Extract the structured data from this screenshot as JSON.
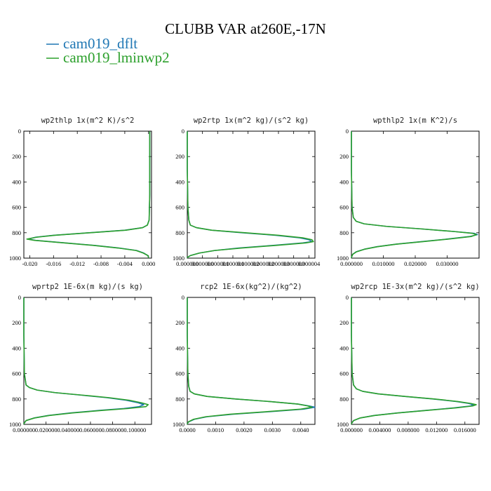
{
  "figure": {
    "title": "CLUBB VAR at260E,-17N",
    "legend": [
      {
        "label": "cam019_dflt",
        "color": "#1f77b4"
      },
      {
        "label": "cam019_lminwp2",
        "color": "#2ca02c"
      }
    ]
  },
  "chart_data": [
    {
      "type": "line",
      "title": "wp2thlp  1x(m^2 K)/s^2",
      "xlim": [
        -0.021,
        0.0005
      ],
      "ylim": [
        1000,
        0
      ],
      "x_ticks": [
        -0.02,
        -0.016,
        -0.012,
        -0.008,
        -0.004,
        0.0
      ],
      "x_tick_labels": [
        "-0.020",
        "-0.016",
        "-0.012",
        "-0.008",
        "-0.004",
        "0.000"
      ],
      "y_ticks": [
        0,
        200,
        400,
        600,
        800,
        1000
      ],
      "y_tick_labels": [
        "0",
        "200",
        "400",
        "600",
        "800",
        "1000"
      ],
      "series": [
        {
          "name": "cam019_dflt",
          "color": "#1f77b4",
          "y": [
            5,
            100,
            300,
            500,
            700,
            740,
            760,
            780,
            800,
            820,
            835,
            850,
            860,
            880,
            900,
            920,
            940,
            960,
            980,
            995
          ],
          "x": [
            0.0002,
            0.0002,
            0.0002,
            0.0002,
            0.0001,
            -0.0002,
            -0.001,
            -0.004,
            -0.01,
            -0.016,
            -0.019,
            -0.0203,
            -0.019,
            -0.014,
            -0.009,
            -0.005,
            -0.002,
            -0.0008,
            -0.0001,
            0.0
          ]
        },
        {
          "name": "cam019_lminwp2",
          "color": "#2ca02c",
          "y": [
            5,
            100,
            300,
            500,
            700,
            740,
            760,
            780,
            800,
            820,
            835,
            850,
            860,
            880,
            900,
            920,
            940,
            960,
            980,
            995
          ],
          "x": [
            0.0002,
            0.0002,
            0.0002,
            0.0002,
            0.0001,
            -0.0002,
            -0.001,
            -0.0038,
            -0.0098,
            -0.0158,
            -0.0188,
            -0.0205,
            -0.0192,
            -0.0142,
            -0.0092,
            -0.0052,
            -0.0021,
            -0.0009,
            -0.0001,
            0.0
          ]
        }
      ]
    },
    {
      "type": "line",
      "title": "wp2rtp  1x(m^2 kg)/(s^2 kg)",
      "xlim": [
        0,
        4.2e-06
      ],
      "ylim": [
        1000,
        0
      ],
      "x_ticks": [
        0,
        5e-07,
        1e-06,
        1.5e-06,
        2e-06,
        2.5e-06,
        3e-06,
        3.5e-06,
        4e-06
      ],
      "x_tick_labels": [
        "0.000000",
        "0.000000",
        "0.000001",
        "0.000001",
        "0.000002",
        "0.000002",
        "0.000003",
        "0.000003",
        "0.000004"
      ],
      "y_ticks": [
        0,
        200,
        400,
        600,
        800,
        1000
      ],
      "y_tick_labels": [
        "0",
        "200",
        "400",
        "600",
        "800",
        "1000"
      ],
      "series": [
        {
          "name": "cam019_dflt",
          "color": "#1f77b4",
          "y": [
            5,
            300,
            600,
            700,
            740,
            760,
            780,
            800,
            820,
            840,
            855,
            870,
            880,
            900,
            920,
            940,
            960,
            980,
            995
          ],
          "x": [
            0.0,
            0.0,
            2e-08,
            5e-08,
            1e-07,
            3e-07,
            8e-07,
            1.8e-06,
            2.9e-06,
            3.7e-06,
            4e-06,
            4.1e-06,
            3.8e-06,
            2.8e-06,
            1.7e-06,
            9e-07,
            4e-07,
            1e-07,
            0.0
          ]
        },
        {
          "name": "cam019_lminwp2",
          "color": "#2ca02c",
          "y": [
            5,
            300,
            600,
            700,
            740,
            760,
            780,
            800,
            820,
            840,
            855,
            870,
            880,
            900,
            920,
            940,
            960,
            980,
            995
          ],
          "x": [
            0.0,
            0.0,
            2e-08,
            5e-08,
            1e-07,
            3e-07,
            8e-07,
            1.9e-06,
            3e-06,
            3.8e-06,
            4.1e-06,
            4.15e-06,
            3.9e-06,
            2.9e-06,
            1.8e-06,
            9e-07,
            4e-07,
            1e-07,
            0.0
          ]
        }
      ]
    },
    {
      "type": "line",
      "title": "wpthlp2  1x(m K^2)/s",
      "xlim": [
        0,
        0.04
      ],
      "ylim": [
        1000,
        0
      ],
      "x_ticks": [
        0,
        0.01,
        0.02,
        0.03
      ],
      "x_tick_labels": [
        "0.000000",
        "0.010000",
        "0.020000",
        "0.030000"
      ],
      "y_ticks": [
        0,
        200,
        400,
        600,
        800,
        1000
      ],
      "y_tick_labels": [
        "0",
        "200",
        "400",
        "600",
        "800",
        "1000"
      ],
      "series": [
        {
          "name": "cam019_dflt",
          "color": "#1f77b4",
          "y": [
            5,
            300,
            600,
            680,
            710,
            730,
            750,
            770,
            790,
            805,
            815,
            830,
            850,
            870,
            890,
            910,
            930,
            950,
            970,
            995
          ],
          "x": [
            0.0,
            0.0,
            0.0002,
            0.0006,
            0.0015,
            0.004,
            0.011,
            0.022,
            0.032,
            0.0385,
            0.0395,
            0.037,
            0.03,
            0.022,
            0.014,
            0.008,
            0.004,
            0.0015,
            0.0004,
            0.0
          ]
        },
        {
          "name": "cam019_lminwp2",
          "color": "#2ca02c",
          "y": [
            5,
            300,
            600,
            680,
            710,
            730,
            750,
            770,
            790,
            805,
            815,
            830,
            850,
            870,
            890,
            910,
            930,
            950,
            970,
            995
          ],
          "x": [
            0.0,
            0.0,
            0.0002,
            0.0006,
            0.0015,
            0.004,
            0.011,
            0.022,
            0.032,
            0.038,
            0.0392,
            0.0375,
            0.0305,
            0.0225,
            0.0142,
            0.0082,
            0.0041,
            0.0016,
            0.0004,
            0.0
          ]
        }
      ]
    },
    {
      "type": "line",
      "title": "wprtp2  1E-6x(m kg)/(s kg)",
      "xlim": [
        0,
        0.115
      ],
      "ylim": [
        1000,
        0
      ],
      "x_ticks": [
        0,
        0.02,
        0.04,
        0.06,
        0.08,
        0.1
      ],
      "x_tick_labels": [
        "0.000000",
        "0.020000",
        "0.040000",
        "0.060000",
        "0.080000",
        "0.100000"
      ],
      "y_ticks": [
        0,
        200,
        400,
        600,
        800,
        1000
      ],
      "y_tick_labels": [
        "0",
        "200",
        "400",
        "600",
        "800",
        "1000"
      ],
      "series": [
        {
          "name": "cam019_dflt",
          "color": "#1f77b4",
          "y": [
            5,
            300,
            600,
            690,
            710,
            730,
            750,
            770,
            790,
            810,
            830,
            845,
            860,
            875,
            890,
            910,
            930,
            950,
            970,
            995
          ],
          "x": [
            0.0,
            0.0,
            0.0005,
            0.002,
            0.005,
            0.012,
            0.028,
            0.052,
            0.075,
            0.092,
            0.103,
            0.108,
            0.104,
            0.09,
            0.068,
            0.042,
            0.022,
            0.009,
            0.002,
            0.0
          ]
        },
        {
          "name": "cam019_lminwp2",
          "color": "#2ca02c",
          "y": [
            5,
            300,
            600,
            690,
            710,
            730,
            750,
            770,
            790,
            810,
            830,
            845,
            860,
            875,
            890,
            910,
            930,
            950,
            970,
            995
          ],
          "x": [
            0.0,
            0.0,
            0.0005,
            0.002,
            0.005,
            0.012,
            0.028,
            0.053,
            0.077,
            0.095,
            0.106,
            0.112,
            0.11,
            0.094,
            0.071,
            0.044,
            0.023,
            0.0095,
            0.002,
            0.0
          ]
        }
      ]
    },
    {
      "type": "line",
      "title": "rcp2  1E-6x(kg^2)/(kg^2)",
      "xlim": [
        0,
        0.0045
      ],
      "ylim": [
        1000,
        0
      ],
      "x_ticks": [
        0,
        0.001,
        0.002,
        0.003,
        0.004
      ],
      "x_tick_labels": [
        "0.0000",
        "0.0010",
        "0.0020",
        "0.0030",
        "0.0040"
      ],
      "y_ticks": [
        0,
        200,
        400,
        600,
        800,
        1000
      ],
      "y_tick_labels": [
        "0",
        "200",
        "400",
        "600",
        "800",
        "1000"
      ],
      "series": [
        {
          "name": "cam019_dflt",
          "color": "#1f77b4",
          "y": [
            5,
            300,
            600,
            700,
            740,
            760,
            780,
            800,
            820,
            840,
            855,
            865,
            880,
            900,
            920,
            940,
            960,
            980,
            995
          ],
          "x": [
            0.0,
            0.0,
            2e-05,
            5e-05,
            0.0001,
            0.00025,
            0.0007,
            0.0017,
            0.0029,
            0.0039,
            0.0043,
            0.0045,
            0.0041,
            0.0029,
            0.0016,
            0.0007,
            0.00025,
            5e-05,
            0.0
          ]
        },
        {
          "name": "cam019_lminwp2",
          "color": "#2ca02c",
          "y": [
            5,
            300,
            600,
            700,
            740,
            760,
            780,
            800,
            820,
            840,
            855,
            865,
            880,
            900,
            920,
            940,
            960,
            980,
            995
          ],
          "x": [
            0.0,
            0.0,
            2e-05,
            5e-05,
            0.0001,
            0.00025,
            0.0007,
            0.0017,
            0.0029,
            0.0039,
            0.00425,
            0.0044,
            0.004,
            0.0028,
            0.0015,
            0.00065,
            0.00022,
            4e-05,
            0.0
          ]
        }
      ]
    },
    {
      "type": "line",
      "title": "wp2rcp  1E-3x(m^2 kg)/(s^2 kg)",
      "xlim": [
        0,
        0.018
      ],
      "ylim": [
        1000,
        0
      ],
      "x_ticks": [
        0,
        0.004,
        0.008,
        0.012,
        0.016
      ],
      "x_tick_labels": [
        "0.000000",
        "0.004000",
        "0.008000",
        "0.012000",
        "0.016000"
      ],
      "y_ticks": [
        0,
        200,
        400,
        600,
        800,
        1000
      ],
      "y_tick_labels": [
        "0",
        "200",
        "400",
        "600",
        "800",
        "1000"
      ],
      "series": [
        {
          "name": "cam019_dflt",
          "color": "#1f77b4",
          "y": [
            5,
            300,
            600,
            690,
            720,
            740,
            760,
            780,
            800,
            820,
            835,
            845,
            855,
            870,
            890,
            910,
            930,
            950,
            970,
            995
          ],
          "x": [
            0.0,
            0.0,
            0.0001,
            0.0003,
            0.0007,
            0.0016,
            0.0038,
            0.0075,
            0.0115,
            0.0148,
            0.0165,
            0.0172,
            0.0168,
            0.0145,
            0.0105,
            0.0065,
            0.0032,
            0.0012,
            0.0003,
            0.0
          ]
        },
        {
          "name": "cam019_lminwp2",
          "color": "#2ca02c",
          "y": [
            5,
            300,
            600,
            690,
            720,
            740,
            760,
            780,
            800,
            820,
            835,
            845,
            855,
            870,
            890,
            910,
            930,
            950,
            970,
            995
          ],
          "x": [
            0.0,
            0.0,
            0.0001,
            0.0003,
            0.0007,
            0.0016,
            0.0038,
            0.0076,
            0.0117,
            0.015,
            0.0168,
            0.0176,
            0.0171,
            0.0148,
            0.0107,
            0.0066,
            0.0033,
            0.0012,
            0.0003,
            0.0
          ]
        }
      ]
    }
  ]
}
